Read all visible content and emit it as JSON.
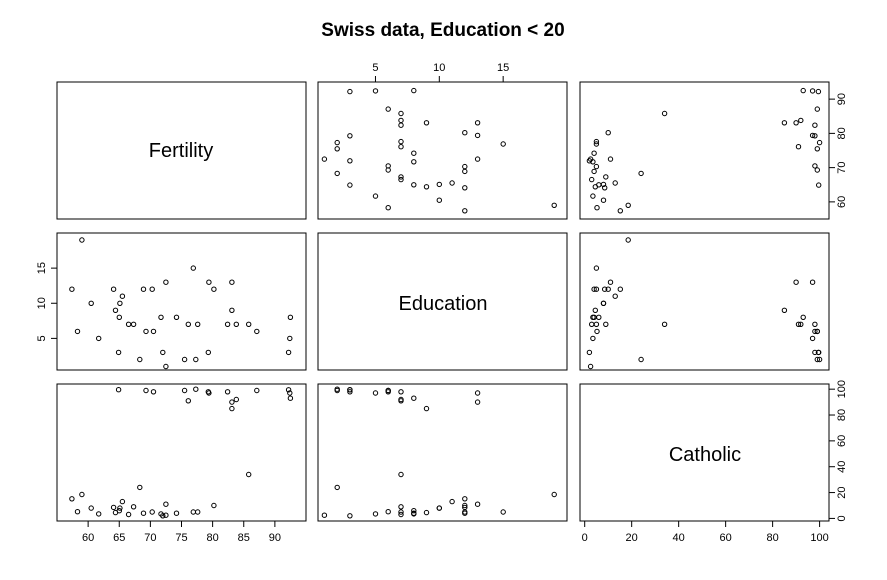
{
  "chart_data": {
    "type": "scatter",
    "kind": "scatterplot-matrix",
    "title": "Swiss data, Education < 20",
    "variables": [
      {
        "name": "Fertility",
        "range": [
          55,
          95
        ],
        "ticks": [
          60,
          65,
          70,
          75,
          80,
          85,
          90
        ],
        "tick_labels_bottom": [
          "60",
          "65",
          "70",
          "75",
          "80",
          "85",
          "90"
        ],
        "tick_labels_right": [
          "60",
          "70",
          "80",
          "90"
        ],
        "right_ticks": [
          60,
          70,
          80,
          90
        ]
      },
      {
        "name": "Education",
        "range": [
          0.5,
          20
        ],
        "ticks": [
          5,
          10,
          15
        ],
        "tick_labels": [
          "5",
          "10",
          "15"
        ]
      },
      {
        "name": "Catholic",
        "range": [
          -2,
          104
        ],
        "ticks": [
          0,
          20,
          40,
          60,
          80,
          100
        ],
        "tick_labels": [
          "0",
          "20",
          "40",
          "60",
          "80",
          "100"
        ]
      }
    ],
    "points": [
      {
        "fertility": 57.4,
        "education": 12,
        "catholic": 15.14
      },
      {
        "fertility": 58.3,
        "education": 6,
        "catholic": 5.23
      },
      {
        "fertility": 59.0,
        "education": 19,
        "catholic": 18.5
      },
      {
        "fertility": 60.5,
        "education": 10,
        "catholic": 8.0
      },
      {
        "fertility": 61.7,
        "education": 5,
        "catholic": 3.5
      },
      {
        "fertility": 64.1,
        "education": 12,
        "catholic": 8.5
      },
      {
        "fertility": 64.4,
        "education": 9,
        "catholic": 4.5
      },
      {
        "fertility": 64.9,
        "education": 3,
        "catholic": 99.6
      },
      {
        "fertility": 65.0,
        "education": 8,
        "catholic": 6.0
      },
      {
        "fertility": 65.1,
        "education": 10,
        "catholic": 8.0
      },
      {
        "fertility": 65.5,
        "education": 11,
        "catholic": 13.0
      },
      {
        "fertility": 66.5,
        "education": 7,
        "catholic": 3.0
      },
      {
        "fertility": 67.3,
        "education": 7,
        "catholic": 9.0
      },
      {
        "fertility": 68.3,
        "education": 2,
        "catholic": 24.0
      },
      {
        "fertility": 68.9,
        "education": 12,
        "catholic": 4.0
      },
      {
        "fertility": 69.3,
        "education": 6,
        "catholic": 99.0
      },
      {
        "fertility": 70.3,
        "education": 12,
        "catholic": 5.0
      },
      {
        "fertility": 70.5,
        "education": 6,
        "catholic": 98.0
      },
      {
        "fertility": 71.7,
        "education": 8,
        "catholic": 3.5
      },
      {
        "fertility": 72.0,
        "education": 3,
        "catholic": 2.0
      },
      {
        "fertility": 72.5,
        "education": 1,
        "catholic": 2.5
      },
      {
        "fertility": 72.5,
        "education": 13,
        "catholic": 11.0
      },
      {
        "fertility": 74.2,
        "education": 8,
        "catholic": 4.0
      },
      {
        "fertility": 75.5,
        "education": 2,
        "catholic": 99.0
      },
      {
        "fertility": 76.1,
        "education": 7,
        "catholic": 91.0
      },
      {
        "fertility": 76.9,
        "education": 15,
        "catholic": 5.0
      },
      {
        "fertility": 77.3,
        "education": 2,
        "catholic": 100.0
      },
      {
        "fertility": 77.6,
        "education": 7,
        "catholic": 5.0
      },
      {
        "fertility": 79.3,
        "education": 3,
        "catholic": 98.0
      },
      {
        "fertility": 79.4,
        "education": 13,
        "catholic": 97.0
      },
      {
        "fertility": 80.2,
        "education": 12,
        "catholic": 10.0
      },
      {
        "fertility": 82.4,
        "education": 7,
        "catholic": 98.0
      },
      {
        "fertility": 83.1,
        "education": 13,
        "catholic": 90.0
      },
      {
        "fertility": 83.1,
        "education": 9,
        "catholic": 85.0
      },
      {
        "fertility": 83.8,
        "education": 7,
        "catholic": 92.0
      },
      {
        "fertility": 85.8,
        "education": 7,
        "catholic": 34.0
      },
      {
        "fertility": 87.1,
        "education": 6,
        "catholic": 99.0
      },
      {
        "fertility": 92.2,
        "education": 3,
        "catholic": 99.5
      },
      {
        "fertility": 92.4,
        "education": 5,
        "catholic": 97.0
      },
      {
        "fertility": 92.5,
        "education": 8,
        "catholic": 93.0
      }
    ]
  }
}
